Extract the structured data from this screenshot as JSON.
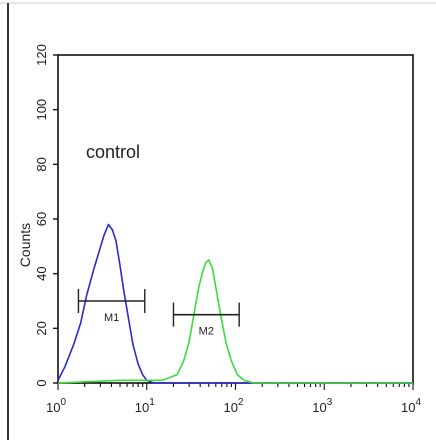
{
  "chart_data": {
    "type": "line",
    "ylabel": "Counts",
    "annotation": "control",
    "x_scale": "log",
    "x_range": [
      1,
      10000
    ],
    "y_range": [
      0,
      120
    ],
    "y_ticks": [
      0,
      20,
      40,
      60,
      80,
      100,
      120
    ],
    "x_ticks": [
      {
        "value": 1,
        "base": "10",
        "exp": "0"
      },
      {
        "value": 10,
        "base": "10",
        "exp": "1"
      },
      {
        "value": 100,
        "base": "10",
        "exp": "2"
      },
      {
        "value": 1000,
        "base": "10",
        "exp": "3"
      },
      {
        "value": 10000,
        "base": "10",
        "exp": "4"
      }
    ],
    "series": [
      {
        "color": "#2a2ad0",
        "x": [
          1.0,
          1.2,
          1.5,
          1.8,
          2.1,
          2.5,
          2.9,
          3.3,
          3.7,
          4.1,
          4.5,
          5.0,
          5.5,
          6.2,
          7.0,
          8.0,
          9.0,
          10,
          12,
          15,
          20,
          50,
          200,
          1000,
          10000
        ],
        "y": [
          1,
          6,
          14,
          22,
          32,
          41,
          48,
          54,
          58,
          56,
          52,
          43,
          34,
          24,
          14,
          7,
          3,
          1,
          0,
          0,
          0,
          0,
          0,
          0,
          0
        ]
      },
      {
        "color": "#3ddc3d",
        "x": [
          1.0,
          5,
          15,
          22,
          26,
          30,
          34,
          38,
          42,
          46,
          50,
          55,
          60,
          68,
          78,
          90,
          105,
          125,
          160,
          300,
          1000,
          10000
        ],
        "y": [
          0,
          1,
          1,
          3,
          8,
          15,
          25,
          34,
          40,
          44,
          45,
          42,
          35,
          25,
          15,
          8,
          3,
          1,
          0,
          0,
          0,
          0
        ]
      }
    ],
    "markers": [
      {
        "label": "M1",
        "x_start": 1.7,
        "x_end": 9.5,
        "y": 30
      },
      {
        "label": "M2",
        "x_start": 20,
        "x_end": 110,
        "y": 25
      }
    ]
  }
}
